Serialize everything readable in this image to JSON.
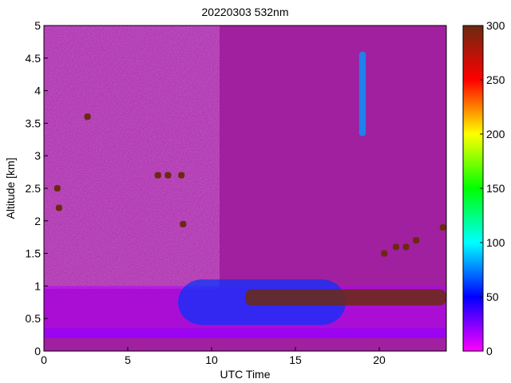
{
  "chart_data": {
    "type": "heatmap",
    "title": "20220303 532nm",
    "xlabel": "UTC Time",
    "ylabel": "Altitude [km]",
    "xlim": [
      0,
      24
    ],
    "ylim": [
      0,
      5
    ],
    "x_ticks": [
      "0",
      "5",
      "10",
      "15",
      "20"
    ],
    "y_ticks": [
      "0",
      "0.5",
      "1",
      "1.5",
      "2",
      "2.5",
      "3",
      "3.5",
      "4",
      "4.5",
      "5"
    ],
    "colorbar": {
      "range": [
        0,
        300
      ],
      "ticks": [
        "0",
        "50",
        "100",
        "150",
        "200",
        "250",
        "300"
      ],
      "colormap": [
        "#ff00ff",
        "#0000ff",
        "#00ffff",
        "#00ff00",
        "#ffff00",
        "#ff0000",
        "#6b2a10"
      ]
    },
    "background_color": "#a020a0",
    "features": [
      {
        "name": "surface layer",
        "time_range": [
          0,
          24
        ],
        "altitude_range": [
          0.2,
          0.35
        ],
        "value": 20
      },
      {
        "name": "boundary layer haze",
        "time_range": [
          0,
          24
        ],
        "altitude_range": [
          0.35,
          1.0
        ],
        "value": 15
      },
      {
        "name": "aerosol layer",
        "time_range": [
          8,
          18
        ],
        "altitude_range": [
          0.4,
          1.1
        ],
        "value": 60
      },
      {
        "name": "cloud base",
        "time_range": [
          12,
          24
        ],
        "altitude_range": [
          0.7,
          0.95
        ],
        "value": 300
      },
      {
        "name": "ice cloud",
        "time_range": [
          18.8,
          19.2
        ],
        "altitude_range": [
          3.3,
          4.6
        ],
        "value": 80
      },
      {
        "name": "cloud fragments",
        "time_range": [
          0.5,
          8.5
        ],
        "altitude_range": [
          1.9,
          3.9
        ],
        "value": 300
      },
      {
        "name": "scattered clouds",
        "time_range": [
          20,
          24
        ],
        "altitude_range": [
          1.4,
          2.0
        ],
        "value": 300
      }
    ]
  }
}
